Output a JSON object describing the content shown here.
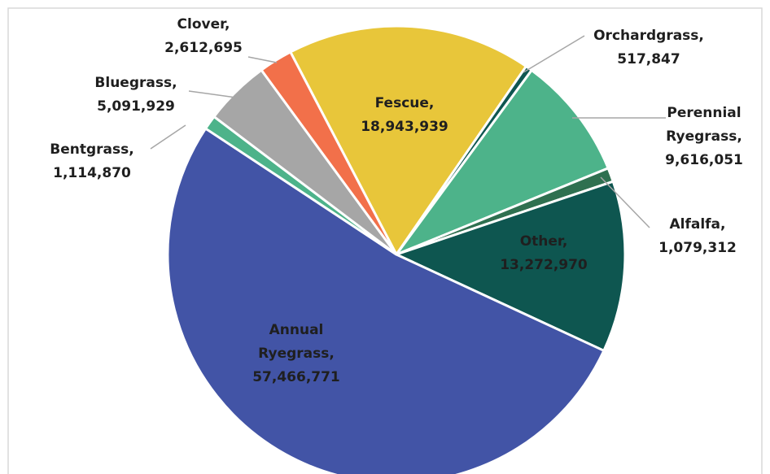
{
  "chart_data": {
    "type": "pie",
    "categories": [
      "Fescue,",
      "Orchardgrass,",
      "Perennial Ryegrass,",
      "Alfalfa,",
      "Other,",
      "Annual Ryegrass,",
      "Bentgrass,",
      "Bluegrass,",
      "Clover,"
    ],
    "values": [
      18943939,
      517847,
      9616051,
      1079312,
      13272970,
      57466771,
      1114870,
      5091929,
      2612695
    ],
    "value_labels": [
      "18,943,939",
      "517,847",
      "9,616,051",
      "1,079,312",
      "13,272,970",
      "57,466,771",
      "1,114,870",
      "5,091,929",
      "2,612,695"
    ],
    "colors": [
      "#e8c63a",
      "#0e5650",
      "#4db38a",
      "#2f7050",
      "#0e5650",
      "#4254a6",
      "#4db38a",
      "#a6a6a6",
      "#f2704a"
    ]
  }
}
